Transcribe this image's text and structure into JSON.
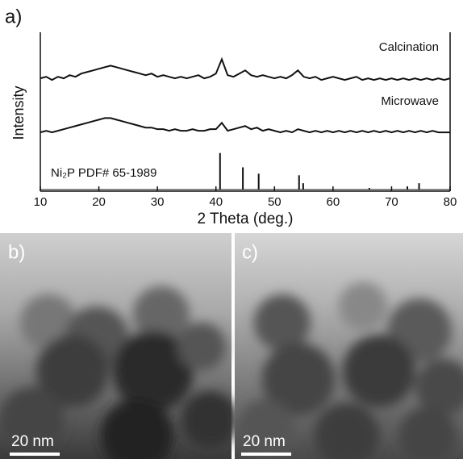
{
  "chart_data": {
    "type": "line",
    "panel_label": "a)",
    "xlabel": "2 Theta (deg.)",
    "ylabel": "Intensity",
    "xlim": [
      10,
      80
    ],
    "xticks": [
      10,
      20,
      30,
      40,
      50,
      60,
      70,
      80
    ],
    "ylim": [
      0,
      100
    ],
    "x": [
      10,
      11,
      12,
      13,
      14,
      15,
      16,
      17,
      18,
      19,
      20,
      21,
      22,
      23,
      24,
      25,
      26,
      27,
      28,
      29,
      30,
      31,
      32,
      33,
      34,
      35,
      36,
      37,
      38,
      39,
      40,
      41,
      42,
      43,
      44,
      45,
      46,
      47,
      48,
      49,
      50,
      51,
      52,
      53,
      54,
      55,
      56,
      57,
      58,
      59,
      60,
      61,
      62,
      63,
      64,
      65,
      66,
      67,
      68,
      69,
      70,
      71,
      72,
      73,
      74,
      75,
      76,
      77,
      78,
      79,
      80
    ],
    "series": [
      {
        "name": "Calcination",
        "color": "#111111",
        "values": [
          71,
          72,
          70,
          72,
          71,
          73,
          72,
          74,
          75,
          76,
          77,
          78,
          79,
          78,
          77,
          76,
          75,
          74,
          73,
          74,
          72,
          73,
          72,
          71,
          72,
          71,
          72,
          73,
          71,
          72,
          74,
          83,
          73,
          72,
          74,
          76,
          73,
          72,
          73,
          72,
          71,
          72,
          71,
          73,
          76,
          72,
          71,
          72,
          70,
          71,
          72,
          71,
          70,
          71,
          72,
          70,
          71,
          70,
          71,
          70,
          71,
          70,
          71,
          70,
          71,
          70,
          71,
          70,
          71,
          70,
          71
        ]
      },
      {
        "name": "Microwave",
        "color": "#111111",
        "values": [
          37,
          38,
          37,
          38,
          39,
          40,
          41,
          42,
          43,
          44,
          45,
          46,
          46,
          45,
          44,
          43,
          42,
          41,
          40,
          40,
          39,
          39,
          38,
          39,
          38,
          38,
          39,
          38,
          38,
          39,
          39,
          43,
          38,
          39,
          40,
          41,
          39,
          40,
          38,
          39,
          38,
          37,
          38,
          37,
          39,
          38,
          37,
          38,
          37,
          38,
          37,
          38,
          37,
          38,
          37,
          38,
          37,
          38,
          37,
          38,
          37,
          38,
          37,
          38,
          37,
          38,
          37,
          38,
          37,
          37,
          37
        ]
      }
    ],
    "reference": {
      "label": "Ni₂P PDF# 65-1989",
      "color": "#111111",
      "positions": [
        40.7,
        44.6,
        47.3,
        54.2,
        54.9,
        66.2,
        72.7,
        74.7
      ],
      "intensities": [
        24,
        15,
        11,
        10,
        5,
        2,
        3,
        5
      ]
    }
  },
  "panels": [
    {
      "label": "b)",
      "scale_bar": "20 nm"
    },
    {
      "label": "c)",
      "scale_bar": "20 nm"
    }
  ]
}
